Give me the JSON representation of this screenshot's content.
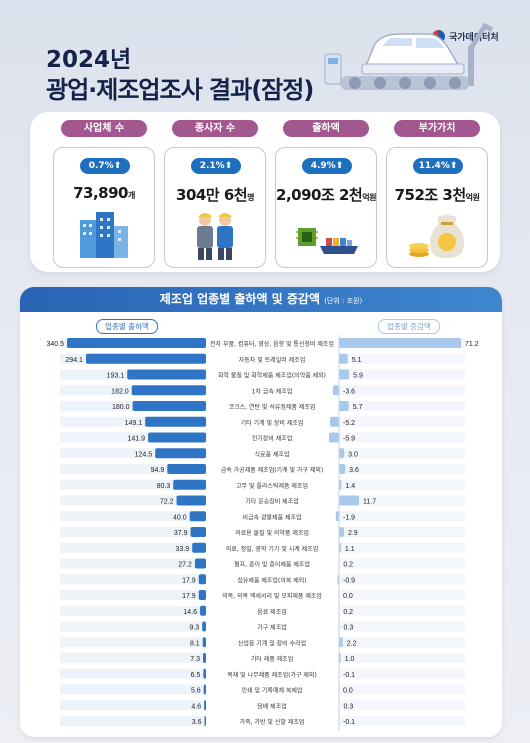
{
  "header": {
    "logo_text": "국가데이터처",
    "year": "2024년",
    "title": "광업·제조업조사 결과(잠정)"
  },
  "kpis": [
    {
      "label": "사업체 수",
      "change": "0.7%",
      "value_main": "73,890",
      "value_unit": "개",
      "icon": "buildings-icon"
    },
    {
      "label": "종사자 수",
      "change": "2.1%",
      "value_main": "304만 6천",
      "value_unit": "명",
      "icon": "workers-icon"
    },
    {
      "label": "출하액",
      "change": "4.9%",
      "value_main": "2,090조 2천",
      "value_unit": "억원",
      "icon": "chip-ship-icon"
    },
    {
      "label": "부가가치",
      "change": "11.4%",
      "value_main": "752조 3천",
      "value_unit": "억원",
      "icon": "money-bag-icon"
    }
  ],
  "chart": {
    "title": "제조업 업종별 출하액 및 증감액",
    "unit": "(단위 : 조원)",
    "legend_left": "업종별 출하액",
    "legend_right": "업종별 증감액"
  },
  "colors": {
    "accent": "#2a64b4",
    "bar_blue": "#2e75c6",
    "bar_light": "#a8c8ec",
    "pill_purple": "#a3578f"
  },
  "chart_data": {
    "type": "bar",
    "title": "제조업 업종별 출하액 및 증감액",
    "unit": "(단위 : 조원)",
    "categories": [
      "전자 부품, 컴퓨터, 영상, 음향 및 통신장비 제조업",
      "자동차 및 트레일러 제조업",
      "화학 물질 및 화학제품 제조업(의약품 제외)",
      "1차 금속 제조업",
      "코크스, 연탄 및 석유정제품 제조업",
      "기타 기계 및 장비 제조업",
      "전기장비 제조업",
      "식료품 제조업",
      "금속 가공제품 제조업(기계 및 가구 제외)",
      "고무 및 플라스틱제품 제조업",
      "기타 운송장비 제조업",
      "비금속 광물제품 제조업",
      "의료용 물질 및 의약품 제조업",
      "의료, 정밀, 광학 기기 및 시계 제조업",
      "펄프, 종이 및 종이제품 제조업",
      "섬유제품 제조업(의복 제외)",
      "의복, 의복 액세서리 및 모피제품 제조업",
      "음료 제조업",
      "가구 제조업",
      "산업용 기계 및 장비 수리업",
      "기타 제품 제조업",
      "목재 및 나무제품 제조업(가구 제외)",
      "인쇄 및 기록매체 복제업",
      "담배 제조업",
      "가죽, 가방 및 신발 제조업"
    ],
    "series": [
      {
        "name": "업종별 출하액",
        "values": [
          340.5,
          294.1,
          193.1,
          182.0,
          180.0,
          149.1,
          141.9,
          124.5,
          94.9,
          80.3,
          72.2,
          40.0,
          37.9,
          33.9,
          27.2,
          17.9,
          17.9,
          14.6,
          9.3,
          8.1,
          7.3,
          6.5,
          5.6,
          4.6,
          3.6
        ]
      },
      {
        "name": "업종별 증감액",
        "values": [
          71.2,
          5.1,
          5.9,
          -3.6,
          5.7,
          -5.2,
          -5.9,
          3.0,
          3.6,
          1.4,
          11.7,
          -1.9,
          2.9,
          1.1,
          0.2,
          -0.9,
          0.0,
          0.2,
          0.3,
          2.2,
          1.0,
          -0.1,
          0.0,
          0.3,
          -0.1
        ]
      }
    ],
    "value_labels_left": [
      "340.5",
      "294.1",
      "193.1",
      "182.0",
      "180.0",
      "149.1",
      "141.9",
      "124.5",
      "94.9",
      "80.3",
      "72.2",
      "40.0",
      "37.9",
      "33.9",
      "27.2",
      "17.9",
      "17.9",
      "14.6",
      "9.3",
      "8.1",
      "7.3",
      "6.5",
      "5.6",
      "4.6",
      "3.6"
    ],
    "value_labels_right": [
      "71.2",
      "5.1",
      "5.9",
      "-3.6",
      "5.7",
      "-5.2",
      "-5.9",
      "3.0",
      "3.6",
      "1.4",
      "11.7",
      "-1.9",
      "2.9",
      "1.1",
      "0.2",
      "-0.9",
      "0.0",
      "0.2",
      "0.3",
      "2.2",
      "1.0",
      "-0.1",
      "0.0",
      "0.3",
      "-0.1"
    ]
  }
}
